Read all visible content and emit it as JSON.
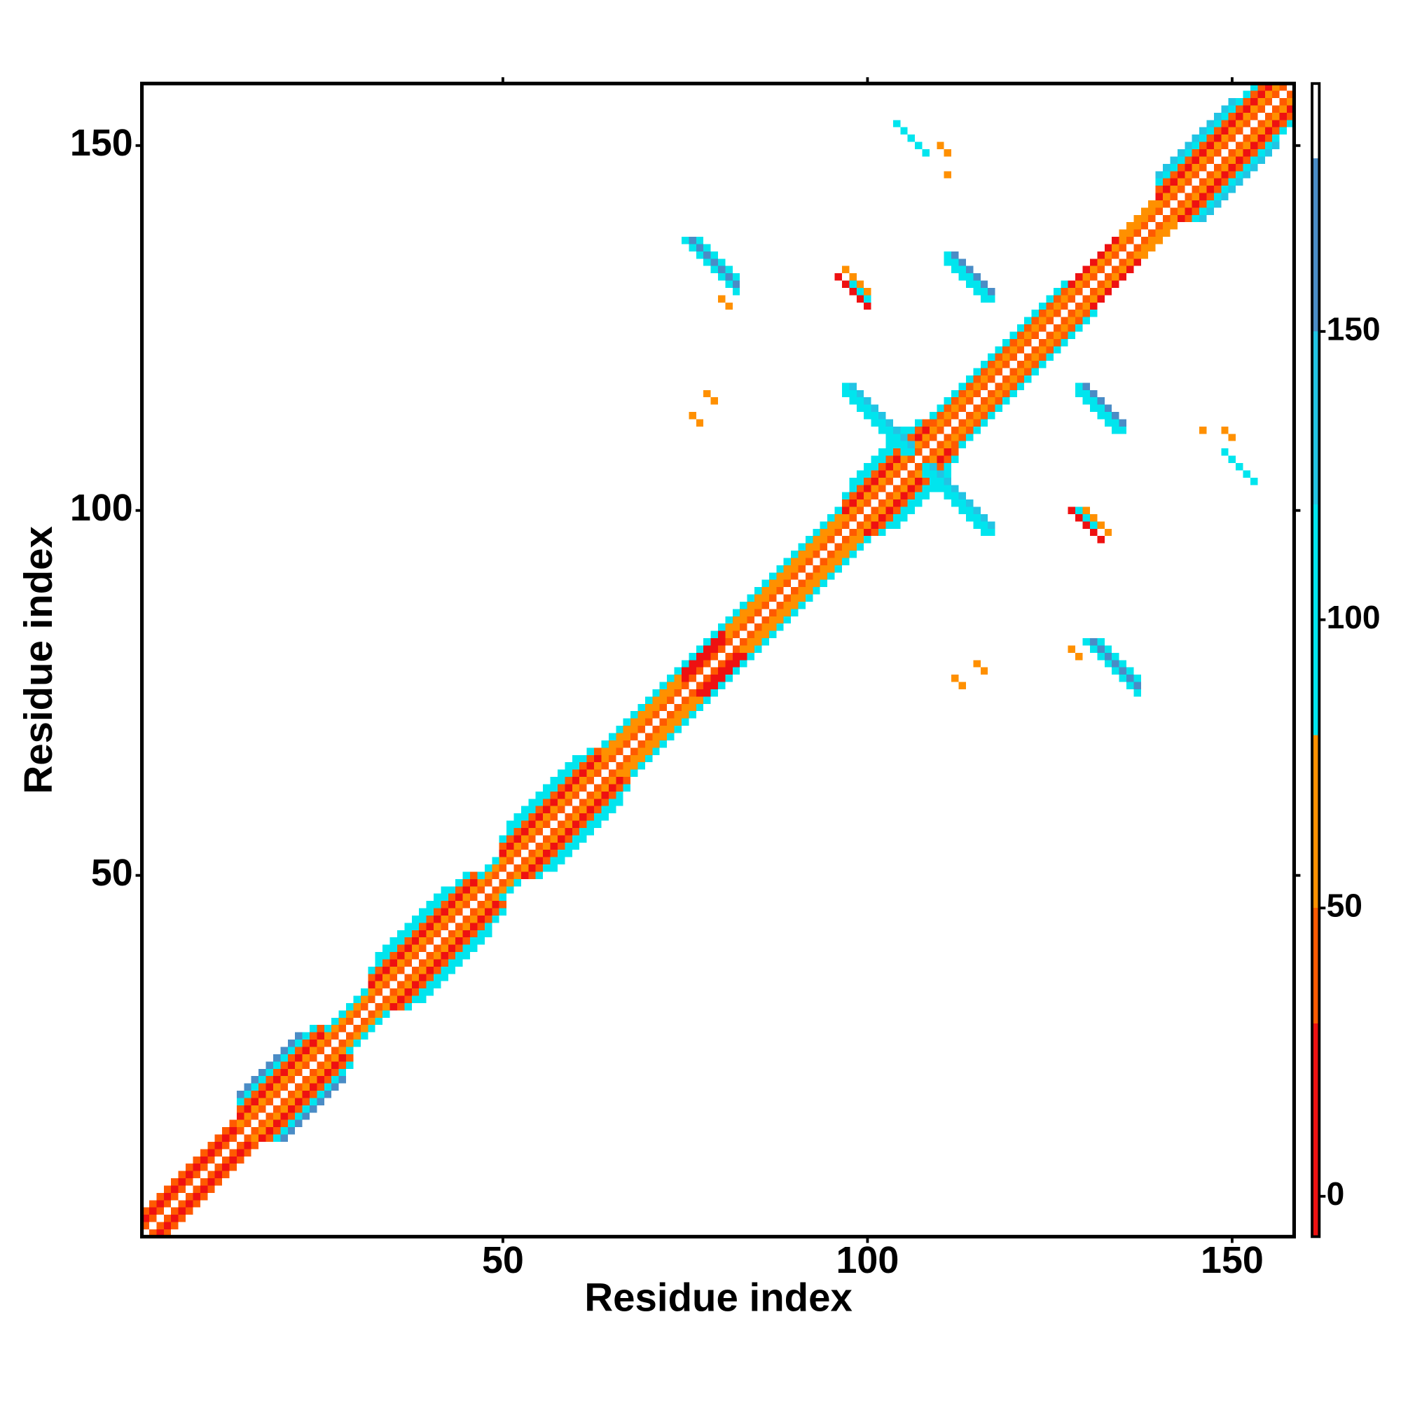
{
  "chart_data": {
    "type": "heatmap",
    "xlabel": "Residue index",
    "ylabel": "Residue index",
    "xlim": [
      0.5,
      158.5
    ],
    "ylim": [
      0.5,
      158.5
    ],
    "xticks": [
      50,
      100,
      150
    ],
    "yticks": [
      50,
      100,
      150
    ],
    "colorbar": {
      "lim": [
        -7,
        193
      ],
      "ticks": [
        0,
        50,
        100,
        150
      ],
      "bins": [
        -7,
        30,
        50,
        80,
        120,
        150,
        180,
        193
      ],
      "colors": [
        "#ee1111",
        "#ff5a00",
        "#ff9000",
        "#00e5ee",
        "#22c4e4",
        "#4a8cc6",
        "#ffffff"
      ]
    },
    "diagonal_bands": [
      {
        "offset": 1,
        "from": 1,
        "to": 157,
        "value": 45
      },
      {
        "offset": 2,
        "from": 1,
        "to": 13,
        "value": 10
      },
      {
        "offset": 2,
        "from": 14,
        "to": 74,
        "value": 60
      },
      {
        "offset": 2,
        "from": 75,
        "to": 80,
        "value": 10
      },
      {
        "offset": 2,
        "from": 81,
        "to": 156,
        "value": 60
      },
      {
        "offset": 3,
        "from": 1,
        "to": 13,
        "value": 40
      },
      {
        "offset": 3,
        "from": 14,
        "to": 25,
        "value": 15
      },
      {
        "offset": 3,
        "from": 26,
        "to": 31,
        "value": 95
      },
      {
        "offset": 3,
        "from": 32,
        "to": 46,
        "value": 20
      },
      {
        "offset": 3,
        "from": 47,
        "to": 49,
        "value": 95
      },
      {
        "offset": 3,
        "from": 50,
        "to": 63,
        "value": 15
      },
      {
        "offset": 3,
        "from": 64,
        "to": 74,
        "value": 60
      },
      {
        "offset": 3,
        "from": 75,
        "to": 80,
        "value": 5
      },
      {
        "offset": 3,
        "from": 81,
        "to": 96,
        "value": 60
      },
      {
        "offset": 3,
        "from": 97,
        "to": 108,
        "value": 10
      },
      {
        "offset": 3,
        "from": 109,
        "to": 127,
        "value": 45
      },
      {
        "offset": 3,
        "from": 128,
        "to": 134,
        "value": 5
      },
      {
        "offset": 3,
        "from": 135,
        "to": 139,
        "value": 60
      },
      {
        "offset": 3,
        "from": 140,
        "to": 155,
        "value": 15
      },
      {
        "offset": 4,
        "from": 14,
        "to": 25,
        "value": 45
      },
      {
        "offset": 4,
        "from": 32,
        "to": 46,
        "value": 45
      },
      {
        "offset": 4,
        "from": 50,
        "to": 63,
        "value": 45
      },
      {
        "offset": 4,
        "from": 64,
        "to": 96,
        "value": 95
      },
      {
        "offset": 4,
        "from": 97,
        "to": 108,
        "value": 45
      },
      {
        "offset": 4,
        "from": 109,
        "to": 127,
        "value": 95
      },
      {
        "offset": 4,
        "from": 140,
        "to": 154,
        "value": 45
      },
      {
        "offset": 5,
        "from": 14,
        "to": 24,
        "value": 95
      },
      {
        "offset": 5,
        "from": 32,
        "to": 45,
        "value": 95
      },
      {
        "offset": 5,
        "from": 50,
        "to": 62,
        "value": 95
      },
      {
        "offset": 5,
        "from": 97,
        "to": 107,
        "value": 95
      },
      {
        "offset": 5,
        "from": 140,
        "to": 153,
        "value": 95
      },
      {
        "offset": 6,
        "from": 14,
        "to": 22,
        "value": 160
      },
      {
        "offset": 6,
        "from": 33,
        "to": 42,
        "value": 105
      },
      {
        "offset": 6,
        "from": 51,
        "to": 60,
        "value": 100
      },
      {
        "offset": 6,
        "from": 98,
        "to": 105,
        "value": 100
      },
      {
        "offset": 6,
        "from": 140,
        "to": 150,
        "value": 130
      }
    ],
    "contact_strips": [
      {
        "i": 75,
        "j": 137,
        "length": 8,
        "value": 95
      },
      {
        "i": 76,
        "j": 137,
        "length": 7,
        "value": 160
      },
      {
        "i": 77,
        "j": 137,
        "length": 6,
        "value": 100
      },
      {
        "i": 80,
        "j": 129,
        "length": 2,
        "value": 60
      },
      {
        "i": 111,
        "j": 135,
        "length": 7,
        "value": 100
      },
      {
        "i": 112,
        "j": 135,
        "length": 6,
        "value": 150
      },
      {
        "i": 111,
        "j": 134,
        "length": 6,
        "value": 95
      },
      {
        "i": 96,
        "j": 132,
        "length": 5,
        "value": 20
      },
      {
        "i": 97,
        "j": 133,
        "length": 4,
        "value": 60
      },
      {
        "i": 98,
        "j": 131,
        "length": 3,
        "value": 95
      },
      {
        "i": 97,
        "j": 116,
        "length": 9,
        "value": 95
      },
      {
        "i": 98,
        "j": 117,
        "length": 9,
        "value": 130
      },
      {
        "i": 97,
        "j": 117,
        "length": 10,
        "value": 100
      },
      {
        "i": 104,
        "j": 153,
        "length": 3,
        "value": 100
      },
      {
        "i": 106,
        "j": 151,
        "length": 3,
        "value": 95
      },
      {
        "i": 110,
        "j": 150,
        "length": 2,
        "value": 60
      },
      {
        "i": 111,
        "j": 146,
        "length": 1,
        "value": 60
      },
      {
        "i": 78,
        "j": 116,
        "length": 2,
        "value": 60
      },
      {
        "i": 76,
        "j": 113,
        "length": 2,
        "value": 60
      }
    ]
  }
}
